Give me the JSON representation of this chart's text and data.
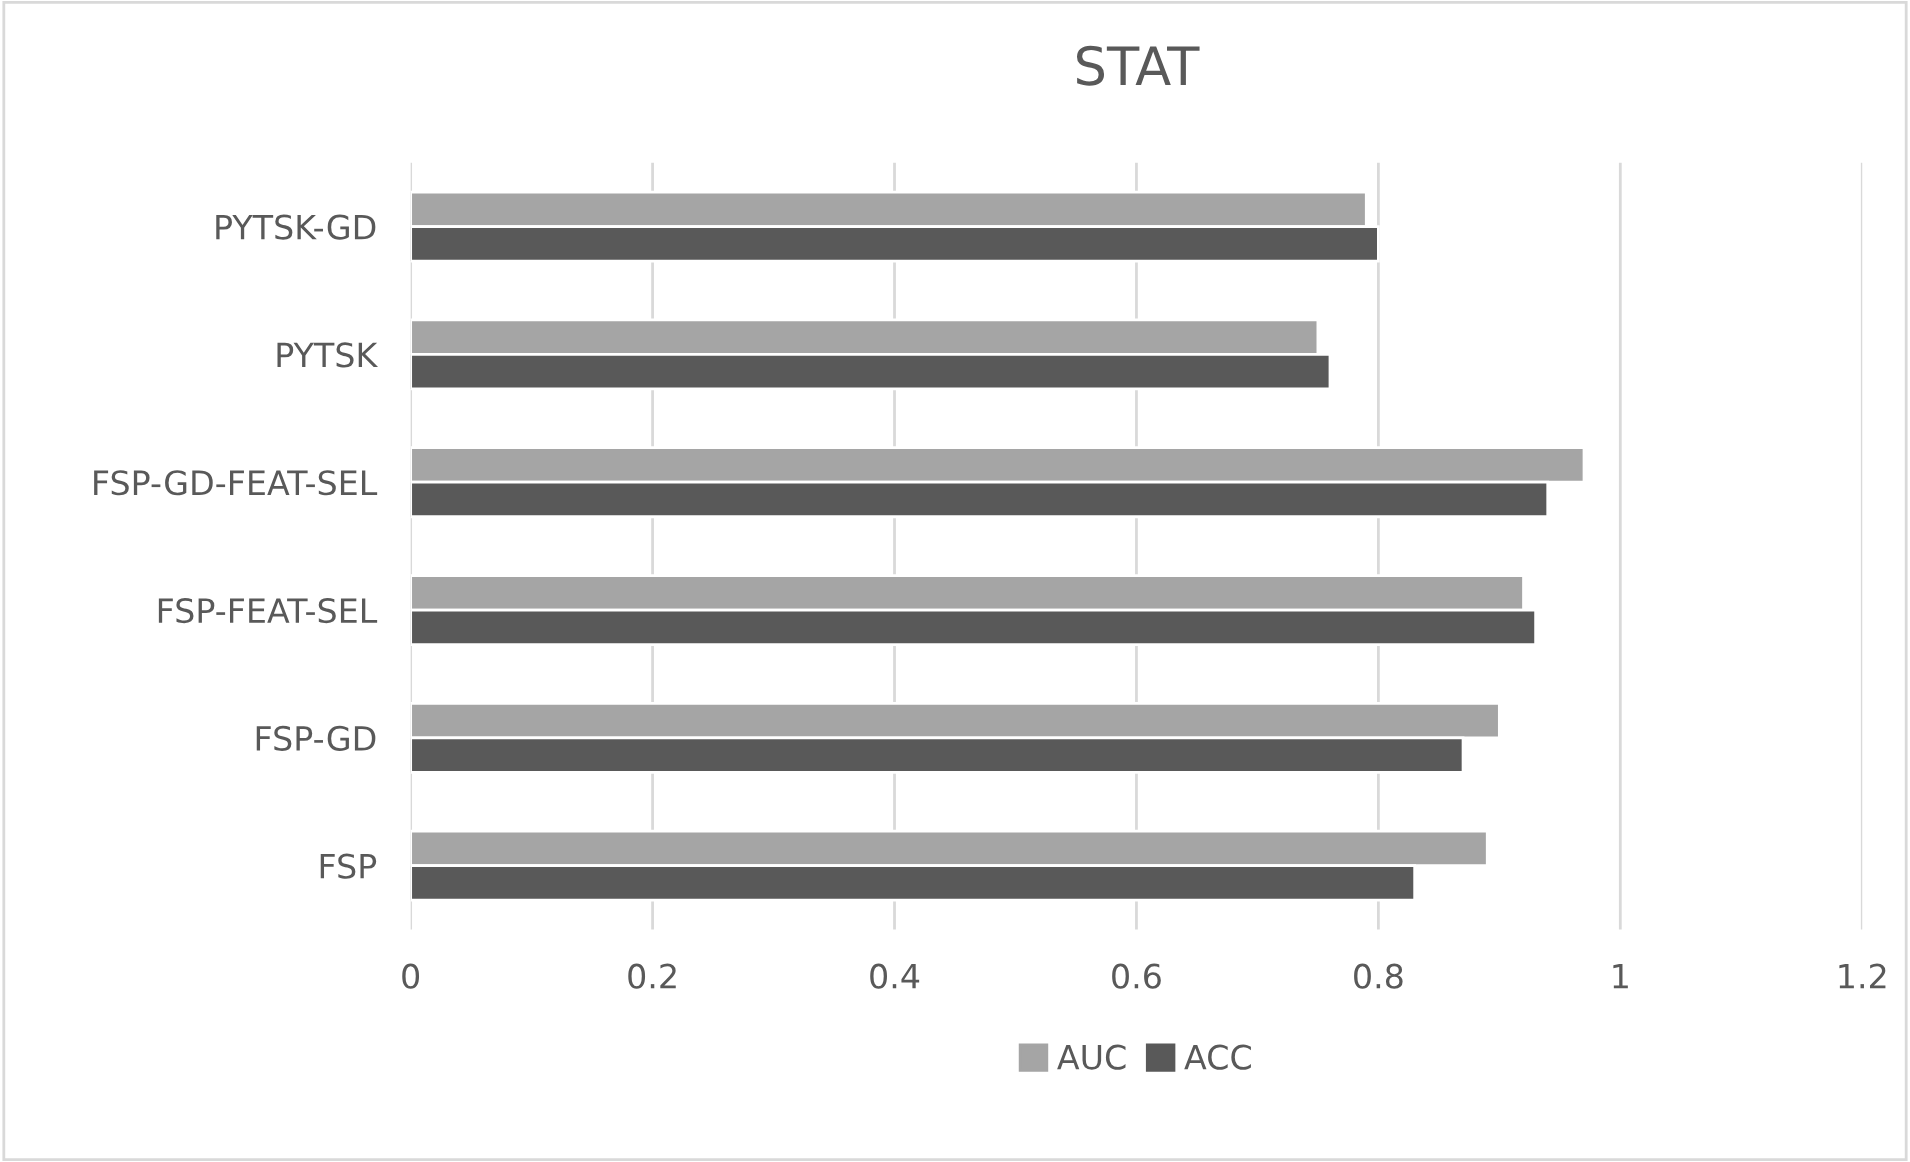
{
  "chart_data": {
    "type": "bar",
    "orientation": "horizontal",
    "title": "STAT",
    "categories": [
      "PYTSK-GD",
      "PYTSK",
      "FSP-GD-FEAT-SEL",
      "FSP-FEAT-SEL",
      "FSP-GD",
      "FSP"
    ],
    "series": [
      {
        "name": "AUC",
        "color": "#a5a5a5",
        "values": [
          0.79,
          0.75,
          0.97,
          0.92,
          0.9,
          0.89
        ]
      },
      {
        "name": "ACC",
        "color": "#595959",
        "values": [
          0.8,
          0.76,
          0.94,
          0.93,
          0.87,
          0.83
        ]
      }
    ],
    "xlim": [
      0,
      1.2
    ],
    "xticks": [
      0,
      0.2,
      0.4,
      0.6,
      0.8,
      1,
      1.2
    ],
    "grid": "x",
    "legend": "bottom"
  }
}
